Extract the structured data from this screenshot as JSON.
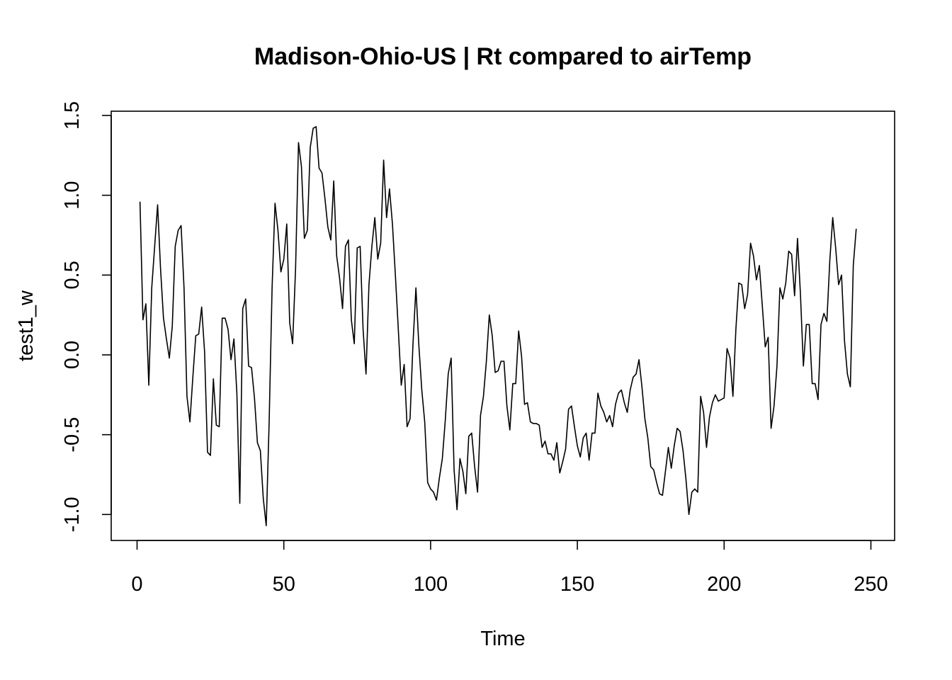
{
  "chart_data": {
    "type": "line",
    "title": "Madison-Ohio-US | Rt compared to airTemp",
    "xlabel": "Time",
    "ylabel": "test1_w",
    "xlim": [
      0,
      250
    ],
    "ylim": [
      -1.0,
      1.5
    ],
    "x_ticks": [
      "0",
      "50",
      "100",
      "150",
      "200",
      "250"
    ],
    "y_ticks": [
      "-1.0",
      "-0.5",
      "0.0",
      "0.5",
      "1.0",
      "1.5"
    ],
    "grid": false,
    "legend": "none",
    "color": "#000000",
    "series": [
      {
        "x_start": 1,
        "x_step": 1,
        "values": [
          0.96,
          0.22,
          0.32,
          -0.19,
          0.42,
          0.68,
          0.94,
          0.54,
          0.23,
          0.1,
          -0.02,
          0.18,
          0.68,
          0.78,
          0.81,
          0.42,
          -0.26,
          -0.42,
          -0.14,
          0.12,
          0.13,
          0.3,
          0.02,
          -0.61,
          -0.63,
          -0.15,
          -0.44,
          -0.45,
          0.23,
          0.23,
          0.16,
          -0.03,
          0.1,
          -0.24,
          -0.93,
          0.29,
          0.35,
          -0.07,
          -0.08,
          -0.27,
          -0.55,
          -0.6,
          -0.9,
          -1.07,
          -0.42,
          0.42,
          0.95,
          0.78,
          0.52,
          0.6,
          0.82,
          0.2,
          0.07,
          0.54,
          1.33,
          1.18,
          0.73,
          0.78,
          1.3,
          1.42,
          1.43,
          1.17,
          1.14,
          0.98,
          0.8,
          0.72,
          1.09,
          0.62,
          0.48,
          0.29,
          0.68,
          0.72,
          0.22,
          0.07,
          0.67,
          0.68,
          0.16,
          -0.12,
          0.44,
          0.68,
          0.86,
          0.6,
          0.7,
          1.22,
          0.86,
          1.04,
          0.82,
          0.5,
          0.16,
          -0.19,
          -0.06,
          -0.45,
          -0.4,
          0.07,
          0.42,
          0.06,
          -0.22,
          -0.42,
          -0.8,
          -0.84,
          -0.86,
          -0.91,
          -0.77,
          -0.65,
          -0.41,
          -0.12,
          -0.02,
          -0.72,
          -0.97,
          -0.65,
          -0.73,
          -0.87,
          -0.51,
          -0.49,
          -0.7,
          -0.86,
          -0.38,
          -0.26,
          -0.04,
          0.25,
          0.12,
          -0.11,
          -0.1,
          -0.04,
          -0.04,
          -0.32,
          -0.47,
          -0.18,
          -0.18,
          0.15,
          -0.01,
          -0.31,
          -0.3,
          -0.42,
          -0.43,
          -0.43,
          -0.44,
          -0.58,
          -0.54,
          -0.62,
          -0.62,
          -0.66,
          -0.55,
          -0.74,
          -0.67,
          -0.59,
          -0.34,
          -0.32,
          -0.45,
          -0.57,
          -0.64,
          -0.52,
          -0.49,
          -0.66,
          -0.49,
          -0.49,
          -0.24,
          -0.32,
          -0.36,
          -0.42,
          -0.38,
          -0.45,
          -0.31,
          -0.24,
          -0.22,
          -0.3,
          -0.36,
          -0.22,
          -0.14,
          -0.12,
          -0.03,
          -0.2,
          -0.4,
          -0.52,
          -0.7,
          -0.72,
          -0.8,
          -0.87,
          -0.88,
          -0.73,
          -0.58,
          -0.71,
          -0.57,
          -0.46,
          -0.48,
          -0.6,
          -0.78,
          -1.0,
          -0.86,
          -0.84,
          -0.86,
          -0.26,
          -0.36,
          -0.58,
          -0.39,
          -0.3,
          -0.25,
          -0.29,
          -0.28,
          -0.27,
          0.04,
          -0.02,
          -0.26,
          0.16,
          0.45,
          0.44,
          0.29,
          0.38,
          0.7,
          0.62,
          0.47,
          0.56,
          0.31,
          0.05,
          0.11,
          -0.46,
          -0.32,
          -0.07,
          0.42,
          0.35,
          0.45,
          0.65,
          0.63,
          0.37,
          0.73,
          0.38,
          -0.07,
          0.19,
          0.19,
          -0.18,
          -0.18,
          -0.28,
          0.19,
          0.26,
          0.21,
          0.59,
          0.86,
          0.67,
          0.44,
          0.5,
          0.09,
          -0.12,
          -0.2,
          0.56,
          0.79
        ]
      }
    ]
  }
}
